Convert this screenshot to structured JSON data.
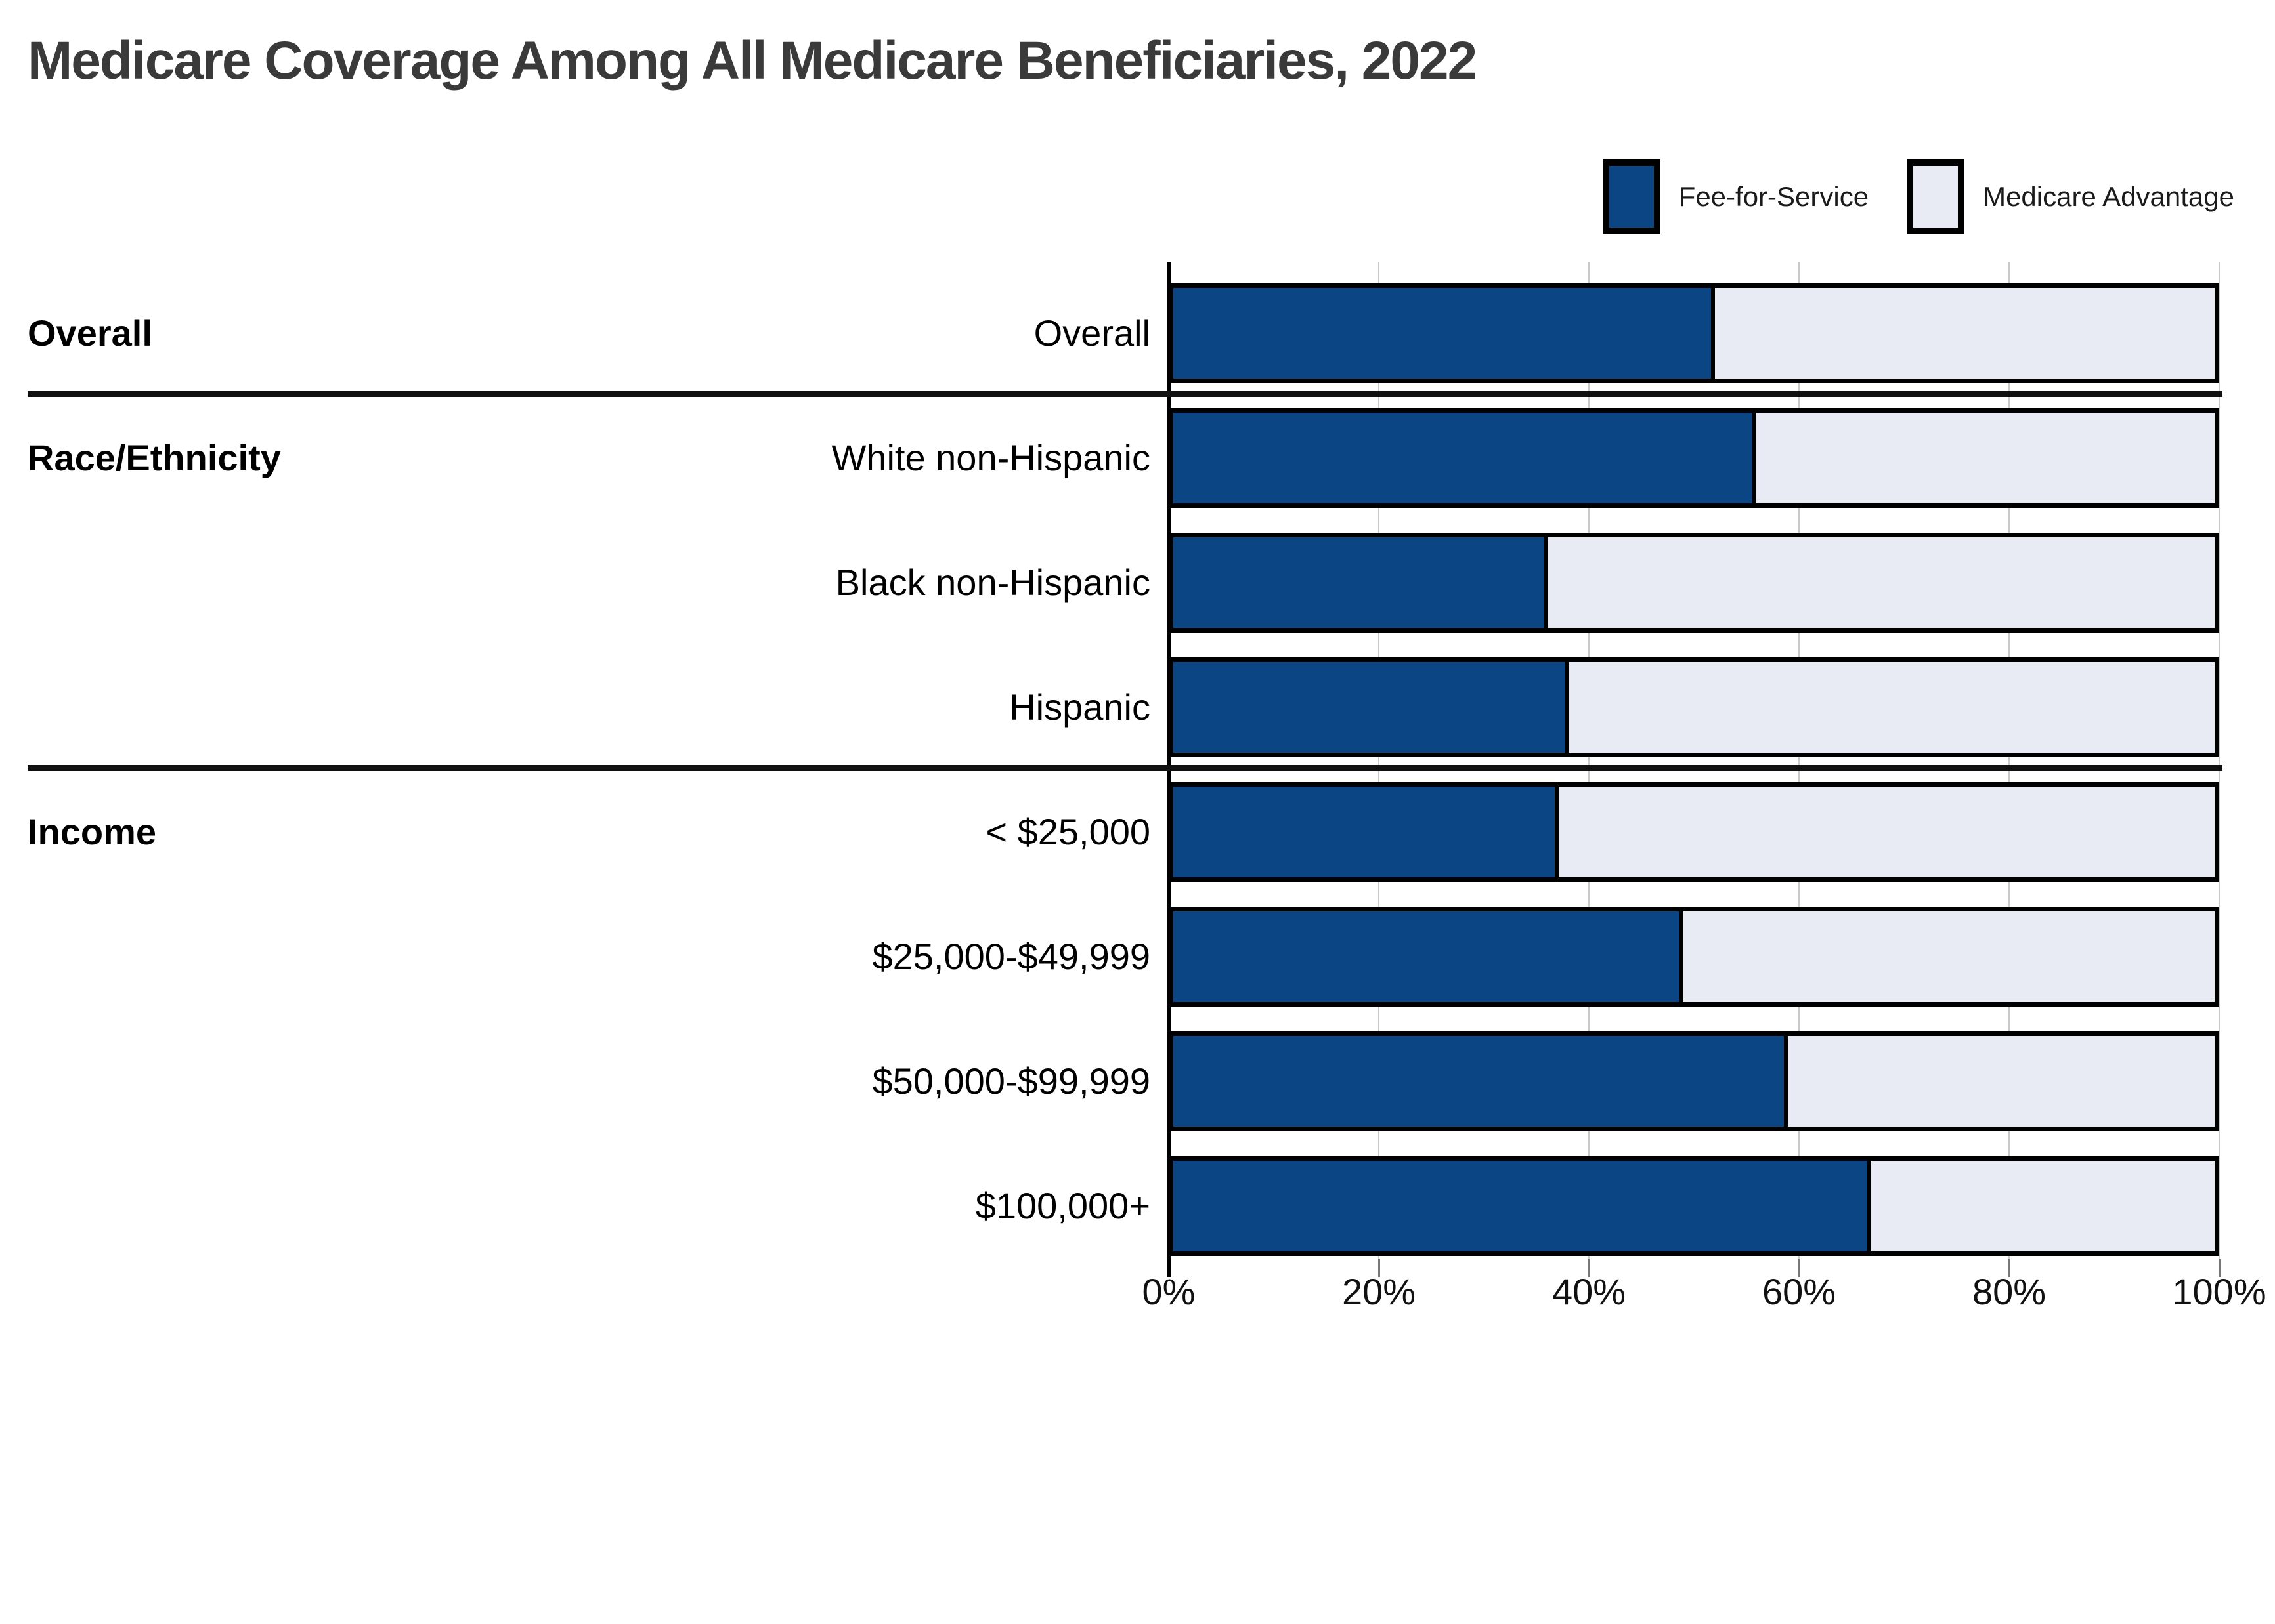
{
  "title": "Medicare Coverage Among All Medicare Beneficiaries, 2022",
  "legend": {
    "items": [
      {
        "label": "Fee-for-Service",
        "color": "#0C4584"
      },
      {
        "label": "Medicare Advantage",
        "color": "#E8EBF4"
      }
    ],
    "swatch_border_color": "#000000"
  },
  "colors": {
    "fee_for_service": "#0C4584",
    "medicare_advantage": "#E8EBF4",
    "bar_border": "#000000",
    "gridline": "#C9C9C9",
    "axis": "#000000",
    "title_text": "#3A3A3A",
    "label_text": "#000000",
    "background": "#FFFFFF"
  },
  "chart_data": {
    "type": "bar",
    "orientation": "horizontal",
    "stacked": true,
    "unit": "percent",
    "title": "Medicare Coverage Among All Medicare Beneficiaries, 2022",
    "series_names": [
      "Fee-for-Service",
      "Medicare Advantage"
    ],
    "xlim": [
      0,
      100
    ],
    "x_ticks": [
      "0%",
      "20%",
      "40%",
      "60%",
      "80%",
      "100%"
    ],
    "grid": true,
    "legend_position": "top-right",
    "sections": [
      {
        "section": "Overall",
        "rows": [
          {
            "label": "Overall",
            "fee_for_service": 52,
            "medicare_advantage": 48
          }
        ]
      },
      {
        "section": "Race/Ethnicity",
        "rows": [
          {
            "label": "White non-Hispanic",
            "fee_for_service": 56,
            "medicare_advantage": 44
          },
          {
            "label": "Black non-Hispanic",
            "fee_for_service": 36,
            "medicare_advantage": 64
          },
          {
            "label": "Hispanic",
            "fee_for_service": 38,
            "medicare_advantage": 62
          }
        ]
      },
      {
        "section": "Income",
        "rows": [
          {
            "label": "< $25,000",
            "fee_for_service": 37,
            "medicare_advantage": 63
          },
          {
            "label": "$25,000-$49,999",
            "fee_for_service": 49,
            "medicare_advantage": 51
          },
          {
            "label": "$50,000-$99,999",
            "fee_for_service": 59,
            "medicare_advantage": 41
          },
          {
            "label": "$100,000+",
            "fee_for_service": 67,
            "medicare_advantage": 33
          }
        ]
      }
    ]
  }
}
